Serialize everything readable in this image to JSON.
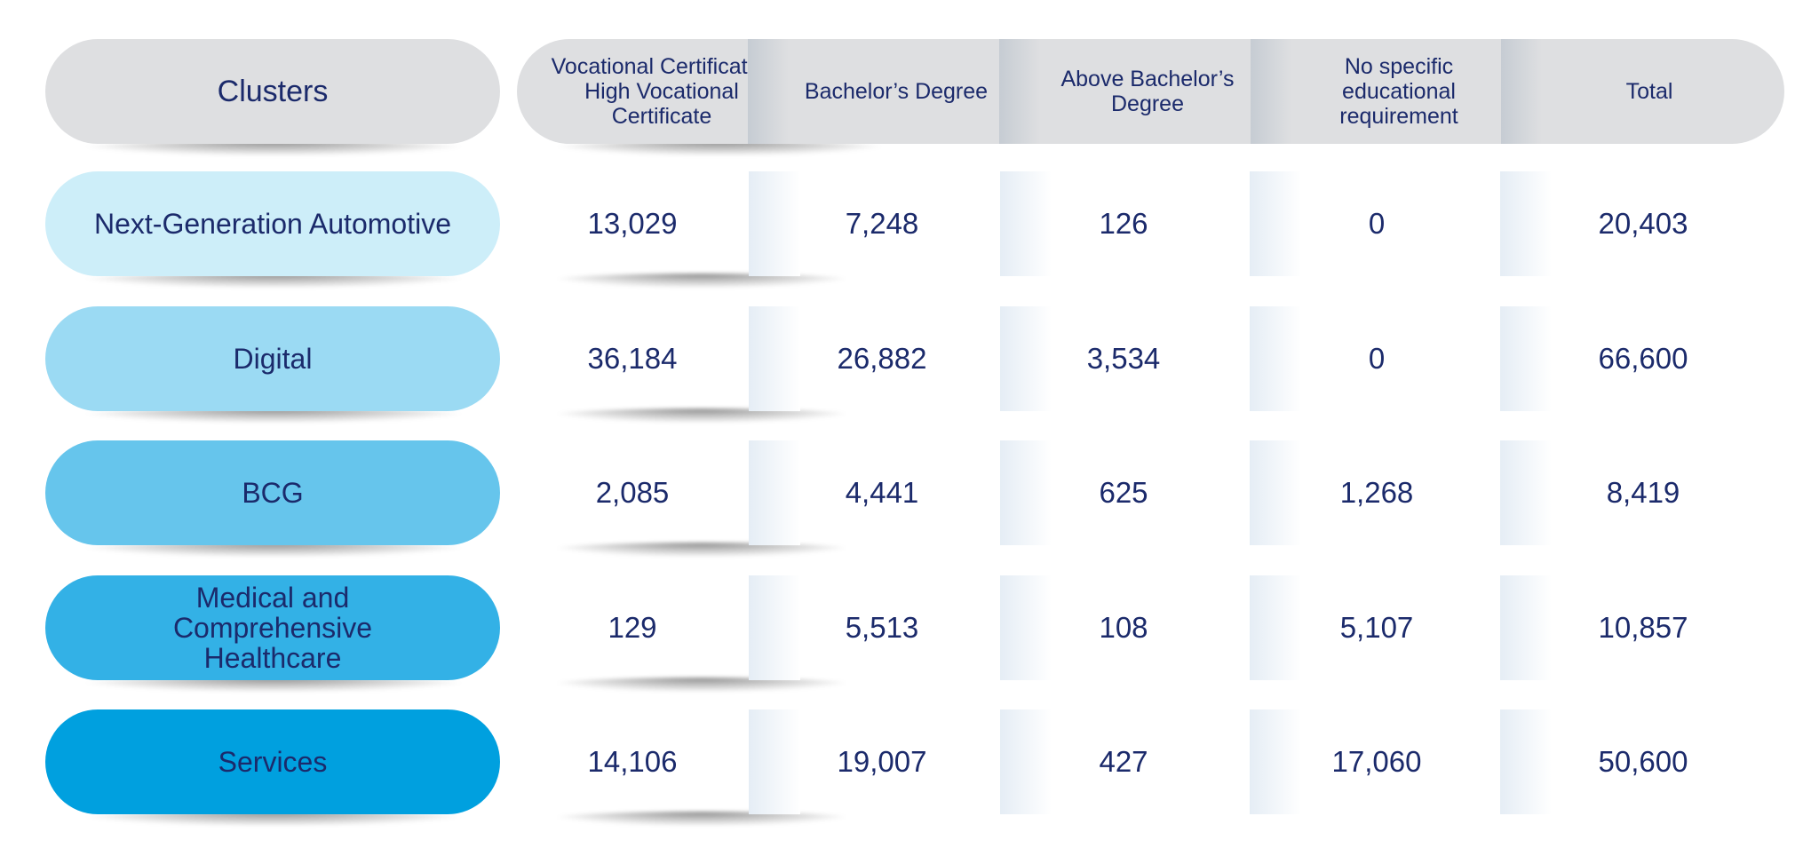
{
  "chart_data": {
    "type": "table",
    "columns": [
      "Clusters",
      "Vocational Certificate / High Vocational Certificate",
      "Bachelor’s Degree",
      "Above Bachelor’s Degree",
      "No specific educational requirement",
      "Total"
    ],
    "rows": [
      {
        "cluster": "Next-Generation Automotive",
        "color": "#cdeef9",
        "text_color": "#1b2a6b",
        "values": [
          "13,029",
          "7,248",
          "126",
          "0",
          "20,403"
        ]
      },
      {
        "cluster": "Digital",
        "color": "#9bdaf3",
        "text_color": "#1b2a6b",
        "values": [
          "36,184",
          "26,882",
          "3,534",
          "0",
          "66,600"
        ]
      },
      {
        "cluster": "BCG",
        "color": "#66c5ec",
        "text_color": "#1b2a6b",
        "values": [
          "2,085",
          "4,441",
          "625",
          "1,268",
          "8,419"
        ]
      },
      {
        "cluster": "Medical and Comprehensive Healthcare",
        "color": "#33b1e6",
        "text_color": "#1b2a6b",
        "values": [
          "129",
          "5,513",
          "108",
          "5,107",
          "10,857"
        ]
      },
      {
        "cluster": "Services",
        "color": "#00a0df",
        "text_color": "#1b2a6b",
        "values": [
          "14,106",
          "19,007",
          "427",
          "17,060",
          "50,600"
        ]
      }
    ]
  },
  "colors": {
    "header_bg": "#dedfe1",
    "text": "#1b2a6b"
  }
}
